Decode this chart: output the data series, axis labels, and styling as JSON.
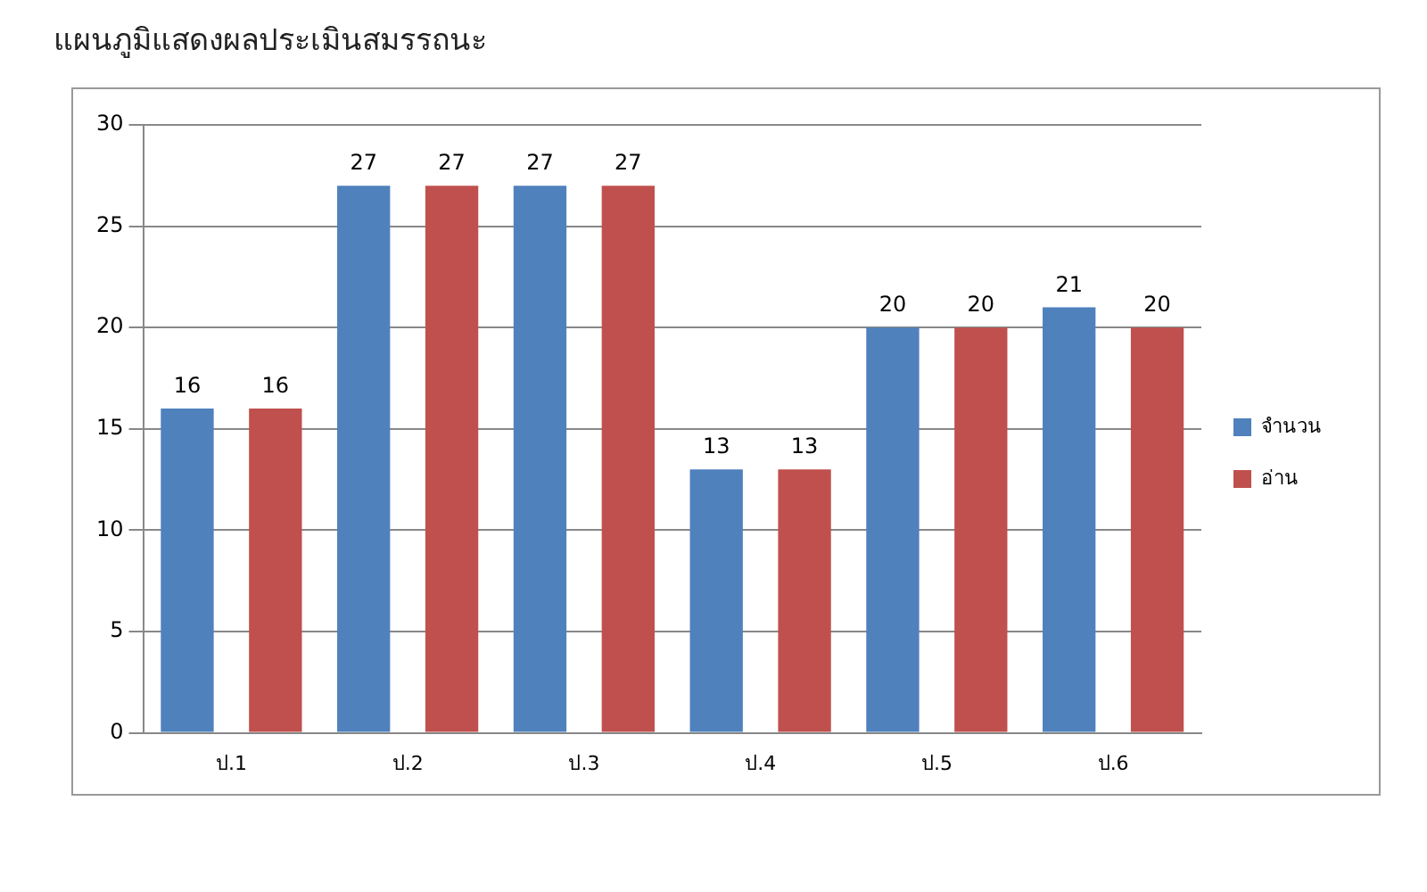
{
  "chart_data": {
    "type": "bar",
    "title": "แผนภูมิแสดงผลประเมินสมรรถนะ",
    "categories": [
      "ป.1",
      "ป.2",
      "ป.3",
      "ป.4",
      "ป.5",
      "ป.6"
    ],
    "series": [
      {
        "name": "จำนวน",
        "color": "#4f81bd",
        "values": [
          16,
          27,
          27,
          13,
          20,
          21
        ]
      },
      {
        "name": "อ่าน",
        "color": "#c0504d",
        "values": [
          16,
          27,
          27,
          13,
          20,
          20
        ]
      }
    ],
    "ylim": [
      0,
      30
    ],
    "yticks": [
      0,
      5,
      10,
      15,
      20,
      25,
      30
    ],
    "grid": "y",
    "legend": "right",
    "data_labels": true
  }
}
